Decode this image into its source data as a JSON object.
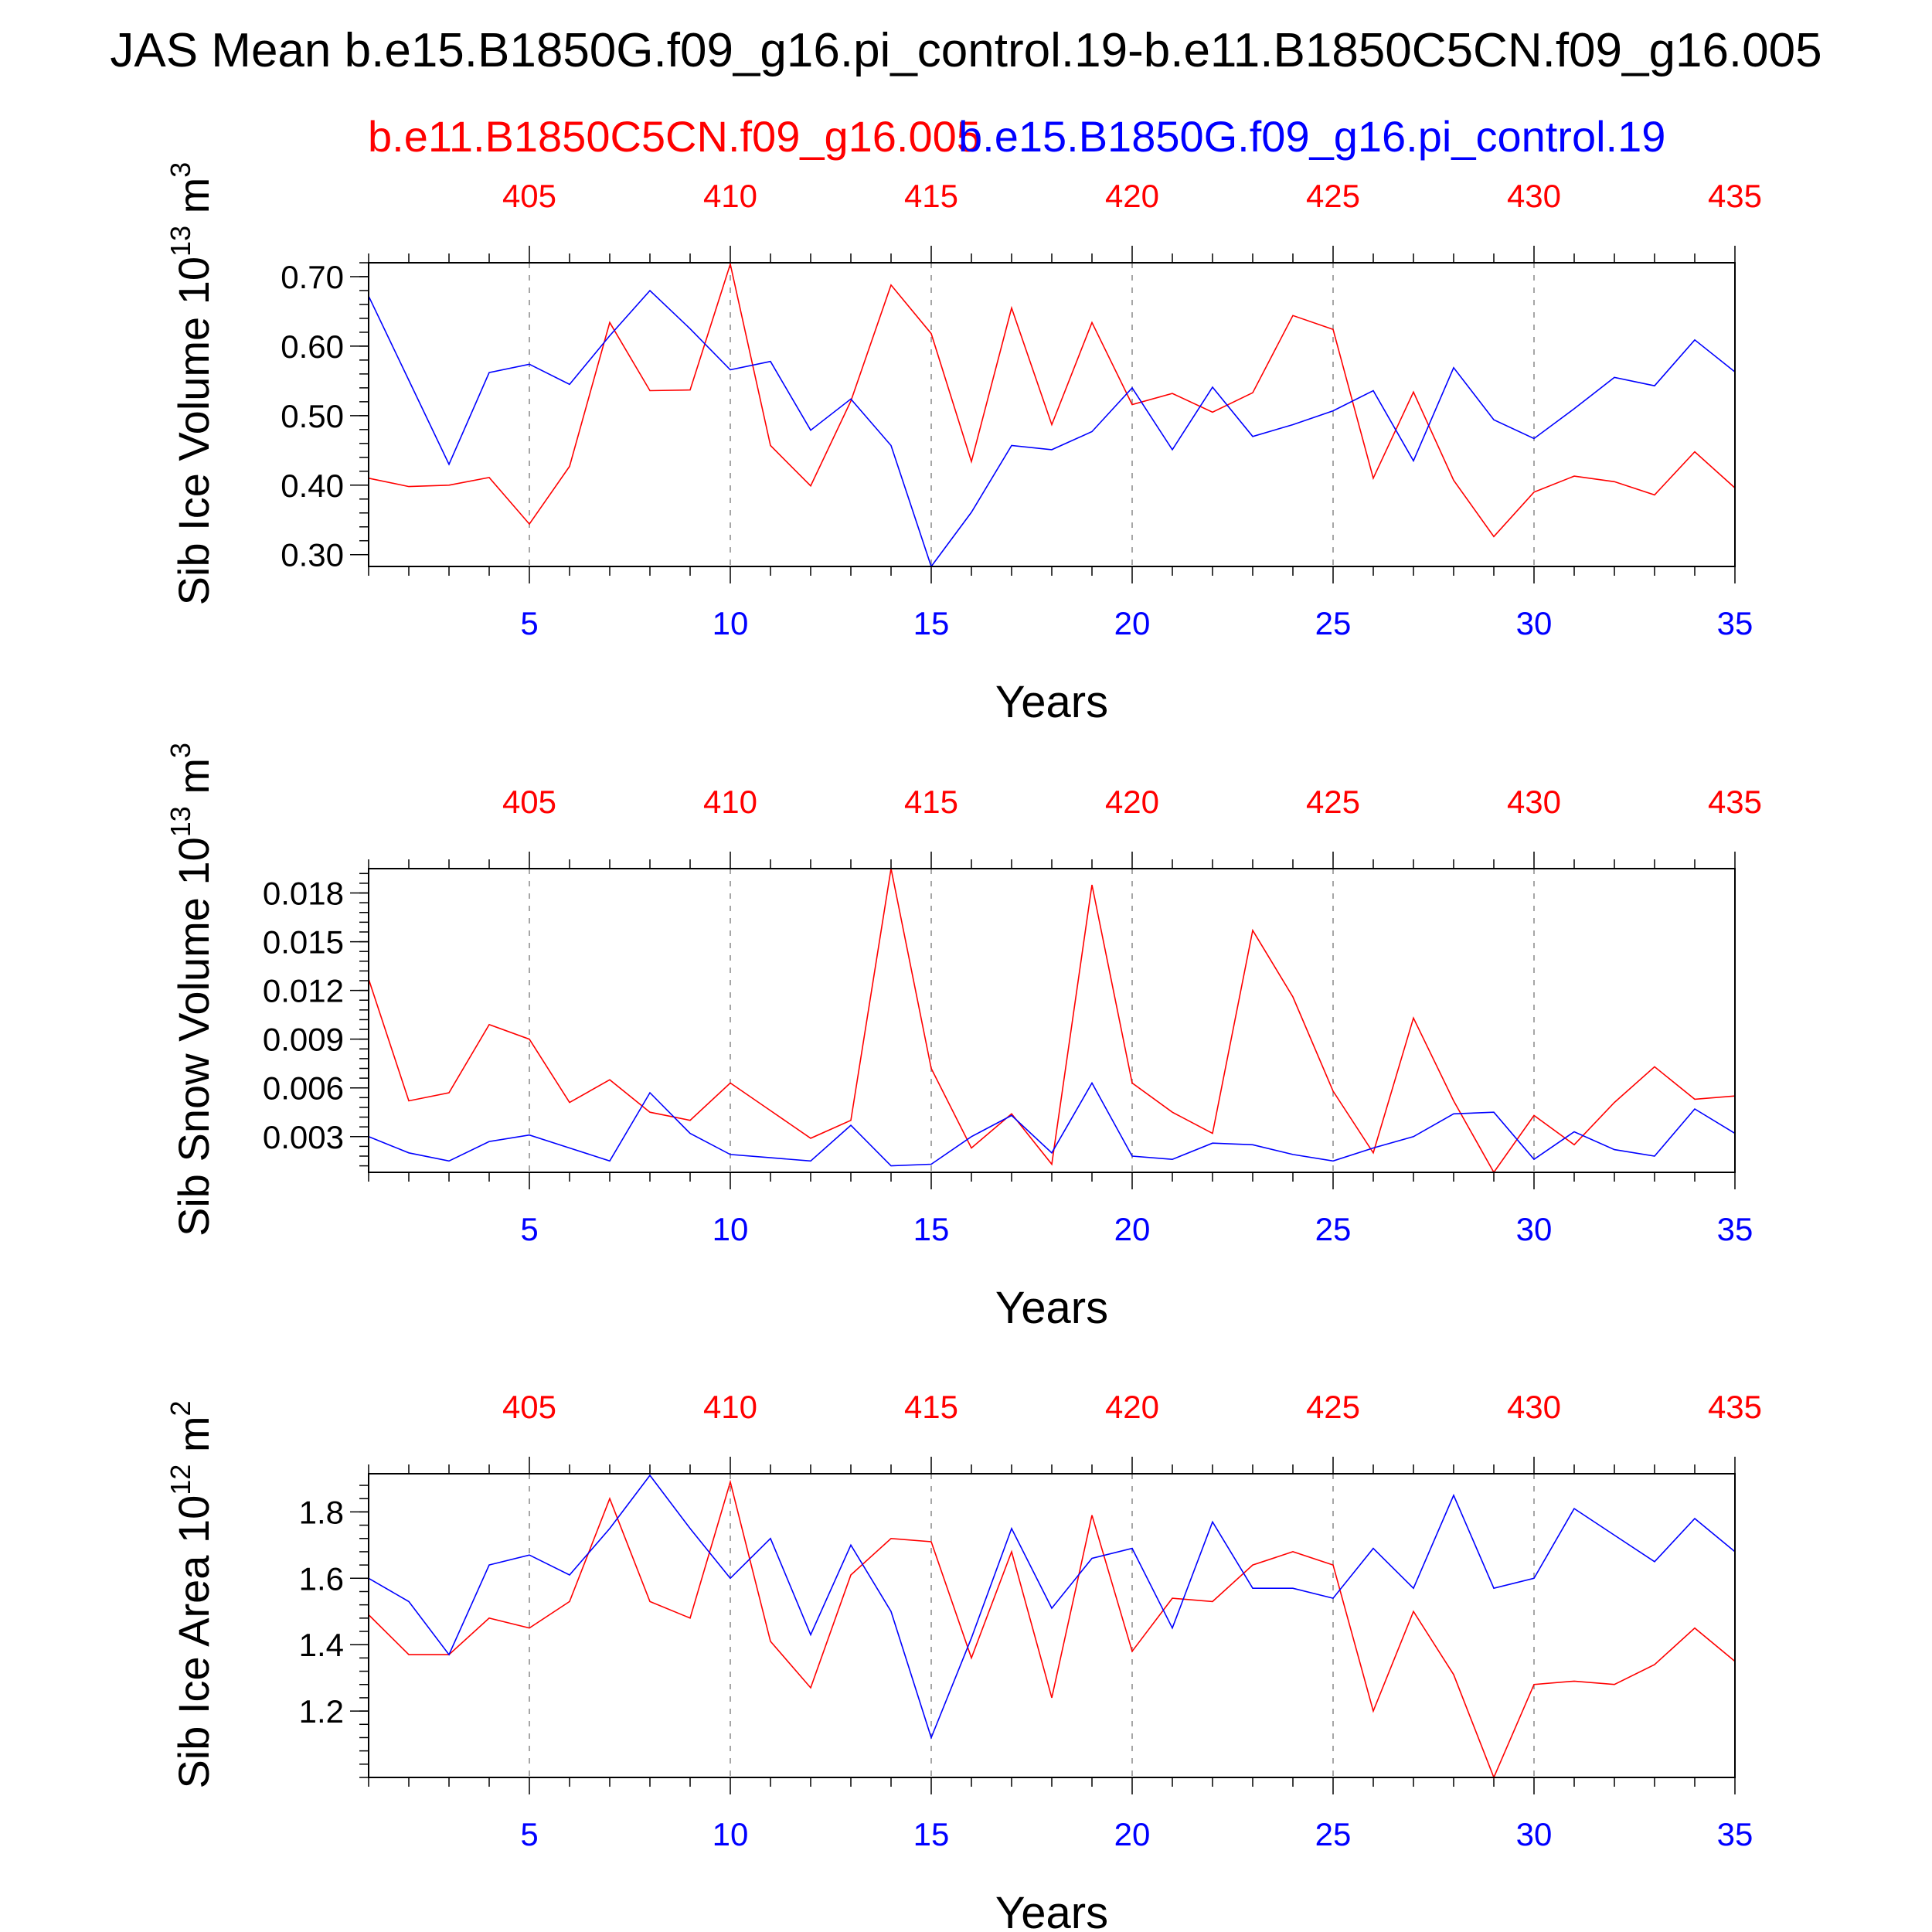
{
  "title": "JAS Mean b.e15.B1850G.f09_g16.pi_control.19-b.e11.B1850C5CN.f09_g16.005",
  "legend": {
    "case_red": "b.e11.B1850C5CN.f09_g16.005",
    "case_blue": "b.e15.B1850G.f09_g16.pi_control.19"
  },
  "colors": {
    "red": "#ff0000",
    "blue": "#0000ff",
    "axis": "#000000",
    "grid": "#888888"
  },
  "chart_data": [
    {
      "type": "line",
      "ylabel": "Sib Ice Volume 10",
      "ylabel_exp": "13",
      "ylabel_unit": " m",
      "ylabel_unit_exp": "3",
      "xlabel": "Years",
      "xlim": [
        1,
        35
      ],
      "ylim": [
        0.283,
        0.72
      ],
      "yticks": [
        0.3,
        0.4,
        0.5,
        0.6,
        0.7
      ],
      "ytick_labels": [
        "0.30",
        "0.40",
        "0.50",
        "0.60",
        "0.70"
      ],
      "yminor_step": 0.02,
      "xticks_bottom": [
        5,
        10,
        15,
        20,
        25,
        30,
        35
      ],
      "xtick_labels_bottom": [
        "5",
        "10",
        "15",
        "20",
        "25",
        "30",
        "35"
      ],
      "xtick_labels_top": [
        "405",
        "410",
        "415",
        "420",
        "425",
        "430",
        "435"
      ],
      "x": [
        1,
        2,
        3,
        4,
        5,
        6,
        7,
        8,
        9,
        10,
        11,
        12,
        13,
        14,
        15,
        16,
        17,
        18,
        19,
        20,
        21,
        22,
        23,
        24,
        25,
        26,
        27,
        28,
        29,
        30,
        31,
        32,
        33,
        34,
        35
      ],
      "series": [
        {
          "name": "b.e11.B1850C5CN.f09_g16.005",
          "color": "red",
          "values": [
            0.41,
            0.398,
            0.4,
            0.411,
            0.344,
            0.427,
            0.634,
            0.536,
            0.537,
            0.718,
            0.457,
            0.399,
            0.521,
            0.688,
            0.618,
            0.434,
            0.655,
            0.487,
            0.634,
            0.516,
            0.532,
            0.505,
            0.533,
            0.644,
            0.624,
            0.41,
            0.534,
            0.407,
            0.326,
            0.39,
            0.413,
            0.405,
            0.386,
            0.448,
            0.396
          ]
        },
        {
          "name": "b.e15.B1850G.f09_g16.pi_control.19",
          "color": "blue",
          "values": [
            0.672,
            0.551,
            0.43,
            0.562,
            0.574,
            0.545,
            0.615,
            0.68,
            0.625,
            0.566,
            0.578,
            0.479,
            0.524,
            0.457,
            0.283,
            0.361,
            0.457,
            0.451,
            0.477,
            0.54,
            0.451,
            0.541,
            0.47,
            0.487,
            0.507,
            0.536,
            0.435,
            0.569,
            0.494,
            0.467,
            0.51,
            0.555,
            0.543,
            0.609,
            0.563
          ]
        }
      ]
    },
    {
      "type": "line",
      "ylabel": "Sib Snow Volume 10",
      "ylabel_exp": "13",
      "ylabel_unit": " m",
      "ylabel_unit_exp": "3",
      "xlabel": "Years",
      "xlim": [
        1,
        35
      ],
      "ylim": [
        0.0008,
        0.0195
      ],
      "yticks": [
        0.003,
        0.006,
        0.009,
        0.012,
        0.015,
        0.018
      ],
      "ytick_labels": [
        "0.003",
        "0.006",
        "0.009",
        "0.012",
        "0.015",
        "0.018"
      ],
      "yminor_step": 0.0006,
      "xticks_bottom": [
        5,
        10,
        15,
        20,
        25,
        30,
        35
      ],
      "xtick_labels_bottom": [
        "5",
        "10",
        "15",
        "20",
        "25",
        "30",
        "35"
      ],
      "xtick_labels_top": [
        "405",
        "410",
        "415",
        "420",
        "425",
        "430",
        "435"
      ],
      "x": [
        1,
        2,
        3,
        4,
        5,
        6,
        7,
        8,
        9,
        10,
        11,
        12,
        13,
        14,
        15,
        16,
        17,
        18,
        19,
        20,
        21,
        22,
        23,
        24,
        25,
        26,
        27,
        28,
        29,
        30,
        31,
        32,
        33,
        34,
        35
      ],
      "series": [
        {
          "name": "b.e11.B1850C5CN.f09_g16.005",
          "color": "red",
          "values": [
            0.0127,
            0.0052,
            0.0057,
            0.0099,
            0.009,
            0.0051,
            0.0065,
            0.0045,
            0.004,
            0.0063,
            0.0046,
            0.0029,
            0.004,
            0.0195,
            0.0072,
            0.0023,
            0.0044,
            0.0013,
            0.0185,
            0.0063,
            0.0045,
            0.0032,
            0.0157,
            0.0116,
            0.0058,
            0.002,
            0.0103,
            0.0052,
            0.0008,
            0.0043,
            0.0025,
            0.0051,
            0.0073,
            0.0053,
            0.0055
          ]
        },
        {
          "name": "b.e15.B1850G.f09_g16.pi_control.19",
          "color": "blue",
          "values": [
            0.003,
            0.002,
            0.0015,
            0.0027,
            0.0031,
            0.0023,
            0.0015,
            0.0057,
            0.0032,
            0.0019,
            0.0017,
            0.0015,
            0.0037,
            0.0012,
            0.0013,
            0.003,
            0.0043,
            0.002,
            0.0063,
            0.0018,
            0.0016,
            0.0026,
            0.0025,
            0.0019,
            0.0015,
            0.0023,
            0.003,
            0.0044,
            0.0045,
            0.0016,
            0.0033,
            0.0022,
            0.0018,
            0.0047,
            0.0032
          ]
        }
      ]
    },
    {
      "type": "line",
      "ylabel": "Sib Ice Area 10",
      "ylabel_exp": "12",
      "ylabel_unit": " m",
      "ylabel_unit_exp": "2",
      "xlabel": "Years",
      "xlim": [
        1,
        35
      ],
      "ylim": [
        1.0,
        1.915
      ],
      "yticks": [
        1.2,
        1.4,
        1.6,
        1.8
      ],
      "ytick_labels": [
        "1.2",
        "1.4",
        "1.6",
        "1.8"
      ],
      "yminor_step": 0.04,
      "xticks_bottom": [
        5,
        10,
        15,
        20,
        25,
        30,
        35
      ],
      "xtick_labels_bottom": [
        "5",
        "10",
        "15",
        "20",
        "25",
        "30",
        "35"
      ],
      "xtick_labels_top": [
        "405",
        "410",
        "415",
        "420",
        "425",
        "430",
        "435"
      ],
      "x": [
        1,
        2,
        3,
        4,
        5,
        6,
        7,
        8,
        9,
        10,
        11,
        12,
        13,
        14,
        15,
        16,
        17,
        18,
        19,
        20,
        21,
        22,
        23,
        24,
        25,
        26,
        27,
        28,
        29,
        30,
        31,
        32,
        33,
        34,
        35
      ],
      "series": [
        {
          "name": "b.e11.B1850C5CN.f09_g16.005",
          "color": "red",
          "values": [
            1.49,
            1.37,
            1.37,
            1.48,
            1.45,
            1.53,
            1.84,
            1.53,
            1.48,
            1.89,
            1.41,
            1.27,
            1.61,
            1.72,
            1.71,
            1.36,
            1.68,
            1.24,
            1.79,
            1.38,
            1.54,
            1.53,
            1.64,
            1.68,
            1.64,
            1.2,
            1.5,
            1.31,
            1.0,
            1.28,
            1.29,
            1.28,
            1.34,
            1.45,
            1.35
          ]
        },
        {
          "name": "b.e15.B1850G.f09_g16.pi_control.19",
          "color": "blue",
          "values": [
            1.6,
            1.53,
            1.37,
            1.64,
            1.67,
            1.61,
            1.75,
            1.91,
            1.75,
            1.6,
            1.72,
            1.43,
            1.7,
            1.5,
            1.12,
            1.42,
            1.75,
            1.51,
            1.66,
            1.69,
            1.45,
            1.77,
            1.57,
            1.57,
            1.54,
            1.69,
            1.57,
            1.85,
            1.57,
            1.6,
            1.81,
            1.73,
            1.65,
            1.78,
            1.68
          ]
        }
      ]
    }
  ]
}
